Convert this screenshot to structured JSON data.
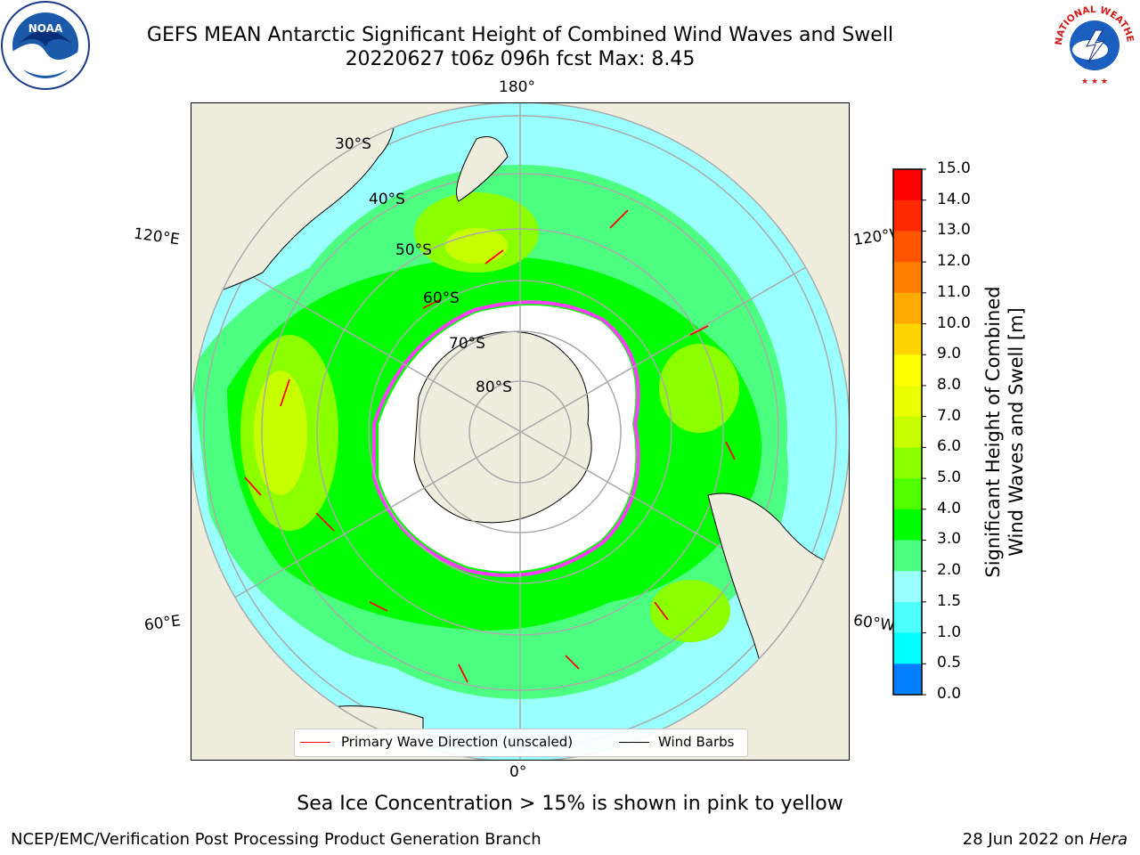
{
  "header": {
    "title_line1": "GEFS MEAN Antarctic Significant Height of Combined Wind Waves and Swell",
    "title_line2": "20220627 t06z 096h fcst   Max: 8.45"
  },
  "map": {
    "longitude_labels": {
      "top": "180°",
      "bottom": "0°",
      "upper_left": "120°E",
      "upper_right": "120°W",
      "lower_left": "60°E",
      "lower_right": "60°W"
    },
    "latitude_labels": [
      "30°S",
      "40°S",
      "50°S",
      "60°S",
      "70°S",
      "80°S"
    ],
    "legend": {
      "wave_direction": "Primary Wave Direction (unscaled)",
      "wind_barbs": "Wind Barbs"
    }
  },
  "colorbar": {
    "label_line1": "Significant Height of Combined",
    "label_line2": "Wind Waves and Swell [m]",
    "ticks": [
      "15.0",
      "14.0",
      "13.0",
      "12.0",
      "11.0",
      "10.0",
      "9.0",
      "8.0",
      "7.0",
      "6.0",
      "5.0",
      "4.0",
      "3.0",
      "2.0",
      "1.5",
      "1.0",
      "0.5",
      "0.0"
    ],
    "colors": [
      "#ff0000",
      "#ff2a00",
      "#ff5500",
      "#ff8000",
      "#ffaa00",
      "#ffd400",
      "#ffff00",
      "#eaff00",
      "#c8ff00",
      "#8cff00",
      "#50ff00",
      "#00ff00",
      "#4dff80",
      "#99ffff",
      "#4dffff",
      "#00ffff",
      "#0080ff",
      "#0000ff"
    ]
  },
  "footer": {
    "note": "Sea Ice Concentration > 15% is shown in pink to yellow",
    "credit": "NCEP/EMC/Verification Post Processing Product Generation Branch",
    "date": "28 Jun 2022 on ",
    "host": "Hera"
  },
  "logos": {
    "noaa_text": "NOAA",
    "nws_text": "NATIONAL WEATHER SERVICE"
  }
}
